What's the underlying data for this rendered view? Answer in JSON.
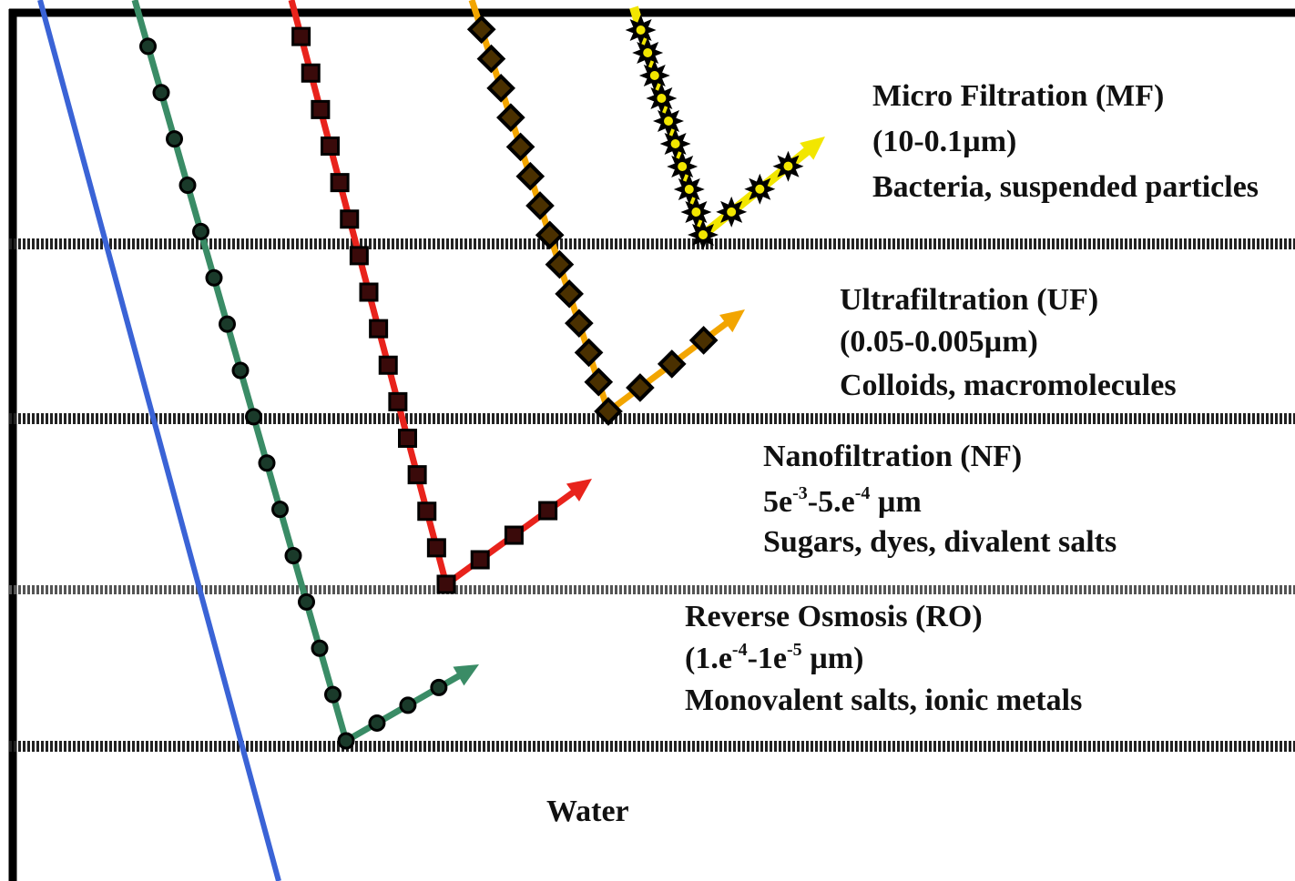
{
  "stages": [
    {
      "id": "mf",
      "name": "Micro Filtration (MF)",
      "range": "(10-0.1µm)",
      "retains": "Bacteria, suspended particles",
      "color": "#f2e600",
      "marker": "star"
    },
    {
      "id": "uf",
      "name": "Ultrafiltration (UF)",
      "range": "(0.05-0.005µm)",
      "retains": "Colloids, macromolecules",
      "color": "#f2a500",
      "marker": "diamond"
    },
    {
      "id": "nf",
      "name": "Nanofiltration (NF)",
      "range_base_1": "5e",
      "range_exp_1": "-3",
      "range_sep": "-5.e",
      "range_exp_2": "-4",
      "range_unit": " µm",
      "retains": "Sugars, dyes, divalent salts",
      "color": "#e8231c",
      "marker": "square"
    },
    {
      "id": "ro",
      "name": "Reverse Osmosis (RO)",
      "range_base_1": "(1.e",
      "range_exp_1": "-4",
      "range_sep": "-1e",
      "range_exp_2": "-5",
      "range_unit": " µm)",
      "retains": "Monovalent salts, ionic metals",
      "color": "#3a8c66",
      "marker": "circle"
    }
  ],
  "water": {
    "label": "Water",
    "color": "#3a63d6"
  },
  "membrane_color": "#222222",
  "frame_color": "#000000"
}
